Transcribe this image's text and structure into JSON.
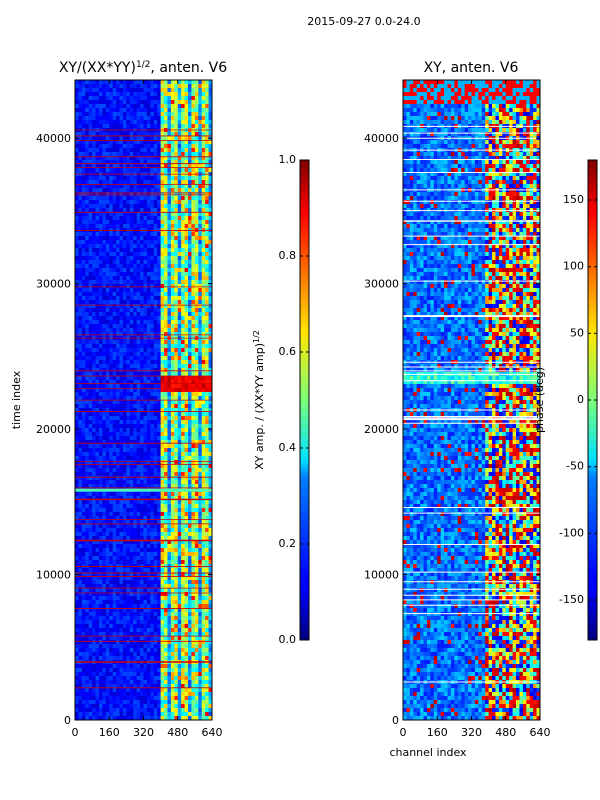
{
  "figure_title": "2015-09-27 0.0-24.0",
  "chart_data": [
    {
      "type": "heatmap",
      "title": "XY/(XX*YY)^{1/2}, anten. V6",
      "title_main": "XY/(XX*YY)",
      "title_exp": "1/2",
      "title_tail": ", anten. V6",
      "xlabel": "",
      "ylabel": "time index",
      "xlim": [
        0,
        640
      ],
      "ylim": [
        0,
        44000
      ],
      "xticks": [
        0,
        160,
        320,
        480,
        640
      ],
      "yticks": [
        0,
        10000,
        20000,
        30000,
        40000
      ],
      "colormap": "jet",
      "colorbar": {
        "label": "XY amp. / (XX*YY amp)^{1/2}",
        "label_main": "XY amp. / (XX*YY amp)",
        "label_exp": "1/2",
        "range": [
          0.0,
          1.0
        ],
        "ticks": [
          "0.0",
          "0.2",
          "0.4",
          "0.6",
          "0.8",
          "1.0"
        ]
      }
    },
    {
      "type": "heatmap",
      "title": "XY, anten. V6",
      "xlabel": "channel index",
      "ylabel": "",
      "xlim": [
        0,
        640
      ],
      "ylim": [
        0,
        44000
      ],
      "xticks": [
        0,
        160,
        320,
        480,
        640
      ],
      "yticks": [
        0,
        10000,
        20000,
        30000,
        40000
      ],
      "colormap": "jet",
      "colorbar": {
        "label": "phase (deg)",
        "range": [
          -180,
          180
        ],
        "ticks": [
          "-150",
          "-100",
          "-50",
          "0",
          "50",
          "100",
          "150"
        ]
      }
    }
  ]
}
